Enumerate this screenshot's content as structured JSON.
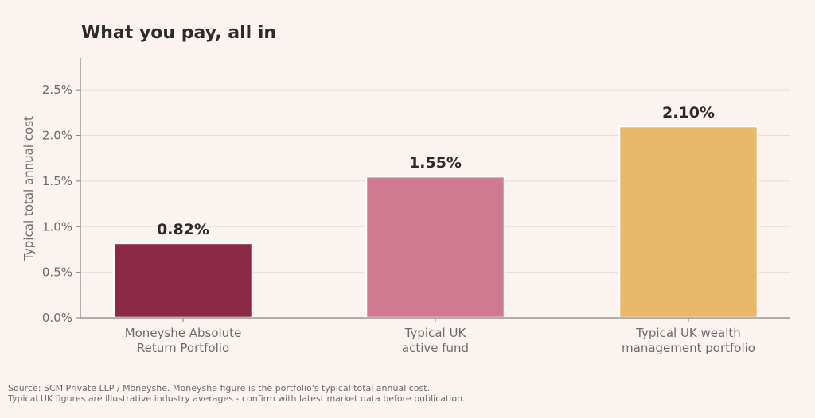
{
  "chart_data": {
    "type": "bar",
    "title": "What you pay, all in",
    "ylabel": "Typical total annual cost",
    "xlabel": "",
    "categories": [
      [
        "Moneyshe Absolute",
        "Return Portfolio"
      ],
      [
        "Typical UK",
        "active fund"
      ],
      [
        "Typical UK wealth",
        "management portfolio"
      ]
    ],
    "values": [
      0.82,
      1.55,
      2.1
    ],
    "value_labels": [
      "0.82%",
      "1.55%",
      "2.10%"
    ],
    "colors": [
      "#8b2a48",
      "#d07a92",
      "#e8b86b"
    ],
    "ylim": [
      0,
      2.85
    ],
    "yticks": [
      0,
      0.5,
      1.0,
      1.5,
      2.0,
      2.5
    ],
    "ytick_labels": [
      "0.0%",
      "0.5%",
      "1.0%",
      "1.5%",
      "2.0%",
      "2.5%"
    ],
    "grid": "horizontal",
    "legend": "none"
  },
  "footnote": {
    "line1": "Source: SCM Private LLP / Moneyshe. Moneyshe figure is the portfolio's typical total annual cost.",
    "line2": "Typical UK figures are illustrative industry averages - confirm with latest market data before publication."
  }
}
